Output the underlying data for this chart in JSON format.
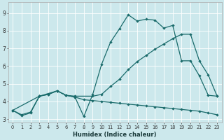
{
  "xlabel": "Humidex (Indice chaleur)",
  "xlim": [
    -0.5,
    23.5
  ],
  "ylim": [
    2.8,
    9.6
  ],
  "xticks": [
    0,
    1,
    2,
    3,
    4,
    5,
    6,
    7,
    8,
    9,
    10,
    11,
    12,
    13,
    14,
    15,
    16,
    17,
    18,
    19,
    20,
    21,
    22,
    23
  ],
  "yticks": [
    3,
    4,
    5,
    6,
    7,
    8,
    9
  ],
  "bg_color": "#cce8ec",
  "line_color": "#1a6b6b",
  "line1_x": [
    0,
    1,
    2,
    3,
    4,
    5,
    6,
    7,
    8,
    9,
    10,
    11,
    12,
    13,
    14,
    15,
    16,
    17,
    18,
    19,
    20,
    21,
    22,
    23
  ],
  "line1_y": [
    3.5,
    3.2,
    3.35,
    4.3,
    4.4,
    4.6,
    4.35,
    4.25,
    3.15,
    4.4,
    6.1,
    7.35,
    8.1,
    8.9,
    8.55,
    8.65,
    8.6,
    8.15,
    8.3,
    6.3,
    6.3,
    5.45,
    4.35,
    4.3
  ],
  "line2_x": [
    0,
    3,
    5,
    6,
    7,
    9,
    10,
    11,
    12,
    13,
    14,
    15,
    16,
    17,
    18,
    19,
    20,
    21,
    22,
    23
  ],
  "line2_y": [
    3.5,
    4.3,
    4.6,
    4.35,
    4.3,
    4.3,
    4.4,
    4.85,
    5.25,
    5.8,
    6.25,
    6.6,
    6.95,
    7.25,
    7.55,
    7.8,
    7.8,
    6.3,
    5.5,
    4.3
  ],
  "line3_x": [
    0,
    1,
    2,
    3,
    4,
    5,
    6,
    7,
    8,
    9,
    10,
    11,
    12,
    13,
    14,
    15,
    16,
    17,
    18,
    19,
    20,
    21,
    22,
    23
  ],
  "line3_y": [
    3.5,
    3.25,
    3.4,
    4.3,
    4.4,
    4.6,
    4.35,
    4.25,
    4.1,
    4.05,
    4.0,
    3.95,
    3.9,
    3.85,
    3.8,
    3.75,
    3.7,
    3.65,
    3.6,
    3.55,
    3.5,
    3.45,
    3.35,
    3.25
  ]
}
